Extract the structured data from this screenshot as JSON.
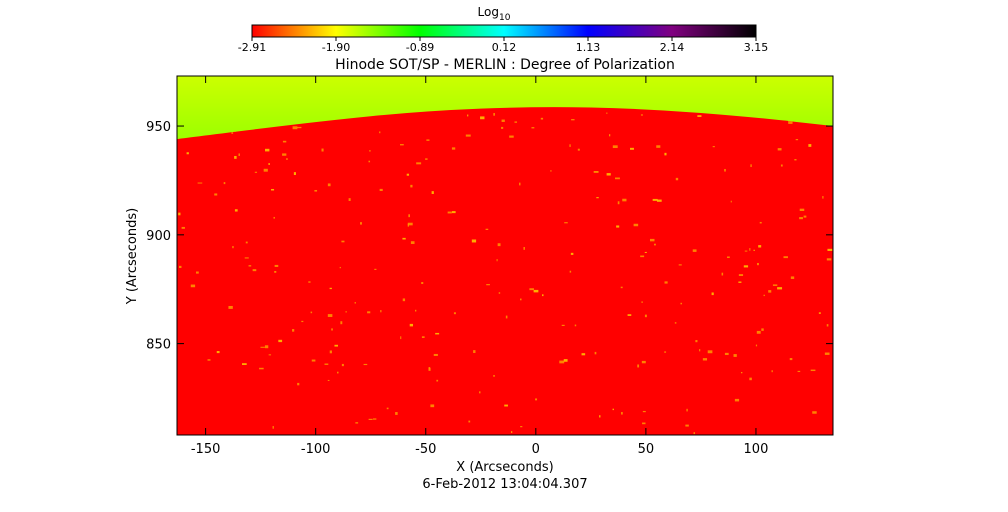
{
  "chart_data": {
    "type": "heatmap",
    "title": "Hinode SOT/SP - MERLIN : Degree of Polarization",
    "xlabel": "X (Arcseconds)",
    "ylabel": "Y (Arcseconds)",
    "timestamp": "6-Feb-2012 13:04:04.307",
    "xlim": [
      -163,
      135
    ],
    "ylim": [
      808,
      973
    ],
    "x_ticks": [
      -150,
      -100,
      -50,
      0,
      50,
      100
    ],
    "y_ticks": [
      850,
      900,
      950
    ],
    "colorbar": {
      "label_base": "Log",
      "label_sub": "10",
      "min": -2.91,
      "max": 3.15,
      "ticks": [
        "-2.91",
        "-1.90",
        "-0.89",
        "0.12",
        "1.13",
        "2.14",
        "3.15"
      ],
      "colors": [
        "#ff0000",
        "#ffff00",
        "#00ff00",
        "#00ffff",
        "#0000ff",
        "#800080",
        "#000000"
      ]
    },
    "limb": {
      "description_points_y": [
        {
          "x": -163,
          "y": 944
        },
        {
          "x": -100,
          "y": 952
        },
        {
          "x": -50,
          "y": 957
        },
        {
          "x": 0,
          "y": 959
        },
        {
          "x": 50,
          "y": 958
        },
        {
          "x": 100,
          "y": 954
        },
        {
          "x": 135,
          "y": 950
        }
      ]
    },
    "disk_color": "#ff0000",
    "offlimb_colors": [
      "#ccff00",
      "#44ff00",
      "#00ff66"
    ]
  }
}
